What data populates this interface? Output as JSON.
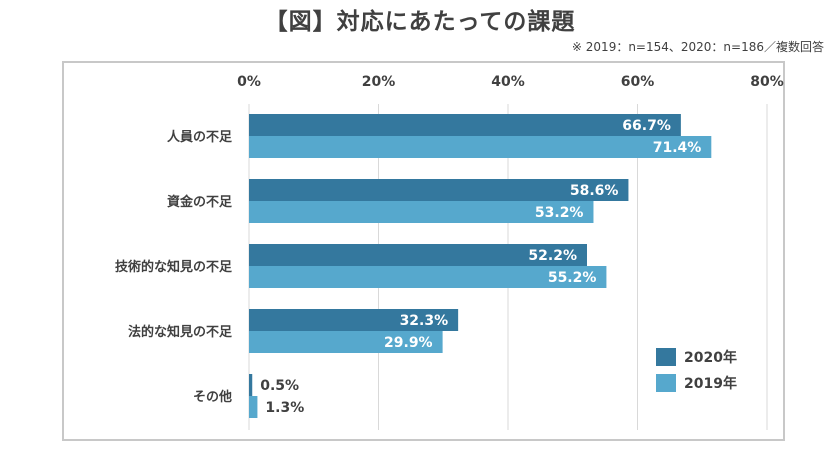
{
  "title": "【図】対応にあたっての課題",
  "note": "※ 2019：n=154、2020：n=186／複数回答",
  "colors": {
    "2020": "#34789e",
    "2019": "#56a8cd",
    "grid": "#d9d9d9",
    "text": "#404040",
    "label_inside": "#ffffff"
  },
  "chart_data": {
    "type": "bar",
    "orientation": "horizontal",
    "categories": [
      "人員の不足",
      "資金の不足",
      "技術的な知見の不足",
      "法的な知見の不足",
      "その他"
    ],
    "series": [
      {
        "name": "2020年",
        "values": [
          66.7,
          58.6,
          52.2,
          32.3,
          0.5
        ]
      },
      {
        "name": "2019年",
        "values": [
          71.4,
          53.2,
          55.2,
          29.9,
          1.3
        ]
      }
    ],
    "value_labels": [
      [
        "66.7%",
        "58.6%",
        "52.2%",
        "32.3%",
        "0.5%"
      ],
      [
        "71.4%",
        "53.2%",
        "55.2%",
        "29.9%",
        "1.3%"
      ]
    ],
    "xlim": [
      0,
      80
    ],
    "ticks": [
      0,
      20,
      40,
      60,
      80
    ],
    "tick_labels": [
      "0%",
      "20%",
      "40%",
      "60%",
      "80%"
    ],
    "grid": true,
    "legend_position": "bottom-right"
  }
}
